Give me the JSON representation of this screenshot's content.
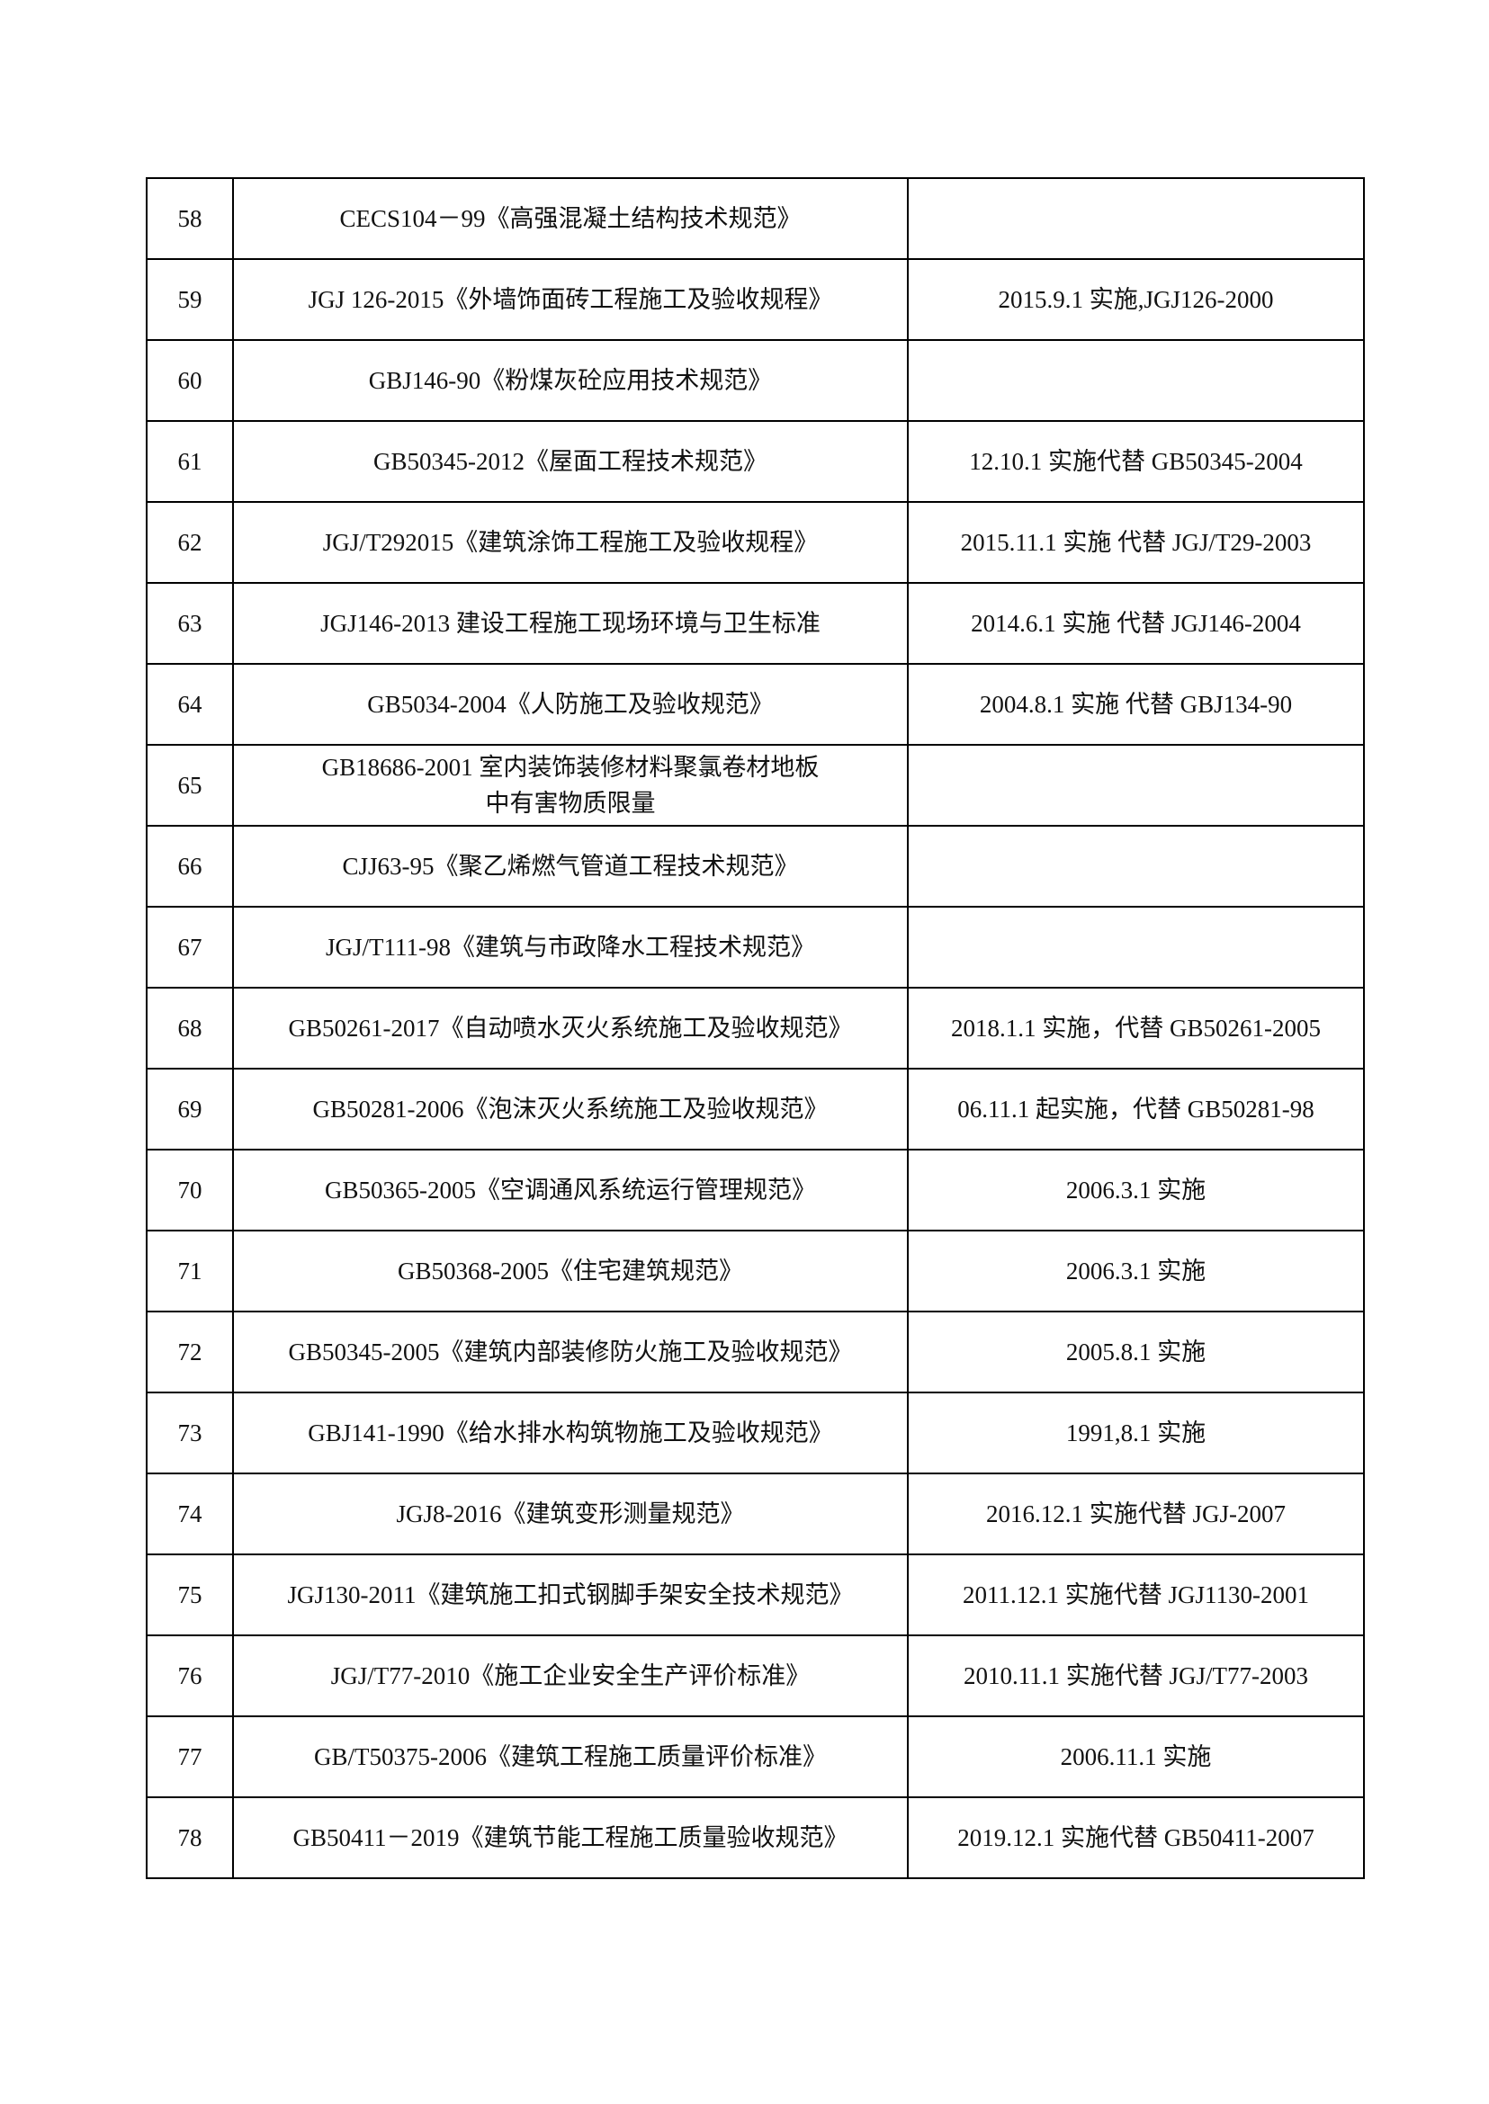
{
  "rows": [
    {
      "no": "58",
      "standard": "CECS104－99《高强混凝土结构技术规范》",
      "note": ""
    },
    {
      "no": "59",
      "standard": "JGJ 126-2015《外墙饰面砖工程施工及验收规程》",
      "note": "2015.9.1 实施,JGJ126-2000"
    },
    {
      "no": "60",
      "standard": "GBJ146-90《粉煤灰砼应用技术规范》",
      "note": ""
    },
    {
      "no": "61",
      "standard": "GB50345-2012《屋面工程技术规范》",
      "note": "12.10.1 实施代替 GB50345-2004"
    },
    {
      "no": "62",
      "standard": "JGJ/T292015《建筑涂饰工程施工及验收规程》",
      "note": "2015.11.1 实施 代替 JGJ/T29-2003"
    },
    {
      "no": "63",
      "standard": "JGJ146-2013 建设工程施工现场环境与卫生标准",
      "note": "2014.6.1 实施 代替 JGJ146-2004"
    },
    {
      "no": "64",
      "standard": "GB5034-2004《人防施工及验收规范》",
      "note": "2004.8.1 实施 代替 GBJ134-90"
    },
    {
      "no": "65",
      "standard": "GB18686-2001 室内装饰装修材料聚氯卷材地板\n中有害物质限量",
      "note": ""
    },
    {
      "no": "66",
      "standard": "CJJ63-95《聚乙烯燃气管道工程技术规范》",
      "note": ""
    },
    {
      "no": "67",
      "standard": "JGJ/T111-98《建筑与市政降水工程技术规范》",
      "note": ""
    },
    {
      "no": "68",
      "standard": "GB50261-2017《自动喷水灭火系统施工及验收规范》",
      "note": "2018.1.1 实施，代替 GB50261-2005"
    },
    {
      "no": "69",
      "standard": "GB50281-2006《泡沫灭火系统施工及验收规范》",
      "note": "06.11.1 起实施，代替 GB50281-98"
    },
    {
      "no": "70",
      "standard": "GB50365-2005《空调通风系统运行管理规范》",
      "note": "2006.3.1 实施"
    },
    {
      "no": "71",
      "standard": "GB50368-2005《住宅建筑规范》",
      "note": "2006.3.1 实施"
    },
    {
      "no": "72",
      "standard": "GB50345-2005《建筑内部装修防火施工及验收规范》",
      "note": "2005.8.1 实施"
    },
    {
      "no": "73",
      "standard": "GBJ141-1990《给水排水构筑物施工及验收规范》",
      "note": "1991,8.1 实施"
    },
    {
      "no": "74",
      "standard": "JGJ8-2016《建筑变形测量规范》",
      "note": "2016.12.1 实施代替 JGJ-2007"
    },
    {
      "no": "75",
      "standard": "JGJ130-2011《建筑施工扣式钢脚手架安全技术规范》",
      "note": "2011.12.1 实施代替 JGJ1130-2001"
    },
    {
      "no": "76",
      "standard": "JGJ/T77-2010《施工企业安全生产评价标准》",
      "note": "2010.11.1 实施代替 JGJ/T77-2003"
    },
    {
      "no": "77",
      "standard": "GB/T50375-2006《建筑工程施工质量评价标准》",
      "note": "2006.11.1 实施"
    },
    {
      "no": "78",
      "standard": "GB50411－2019《建筑节能工程施工质量验收规范》",
      "note": "2019.12.1 实施代替 GB50411-2007"
    }
  ]
}
